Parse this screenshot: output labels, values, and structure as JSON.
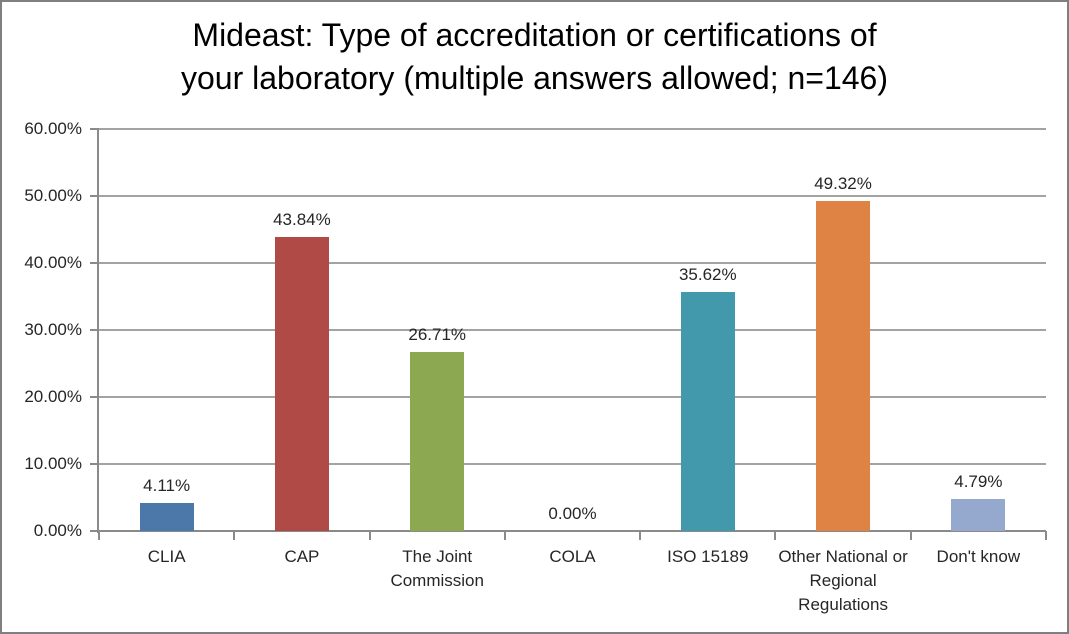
{
  "window": {
    "background": "#ffffff",
    "border_color": "#7f7f7f"
  },
  "chart_data": {
    "type": "bar",
    "title": "Mideast: Type of accreditation or certifications of your laboratory (multiple answers allowed; n=146)",
    "title_lines": [
      "Mideast: Type of accreditation or certifications of",
      "your laboratory (multiple answers allowed; n=146)"
    ],
    "categories": [
      "CLIA",
      "CAP",
      "The Joint Commission",
      "COLA",
      "ISO 15189",
      "Other National or Regional Regulations",
      "Don't know"
    ],
    "values": [
      4.11,
      43.84,
      26.71,
      0.0,
      35.62,
      49.32,
      4.79
    ],
    "value_labels": [
      "4.11%",
      "43.84%",
      "26.71%",
      "0.00%",
      "35.62%",
      "49.32%",
      "4.79%"
    ],
    "bar_colors": [
      "#4B77A9",
      "#B04A47",
      "#8CA951",
      null,
      "#4299AC",
      "#DE8344",
      "#95A9CF"
    ],
    "xlabel": "",
    "ylabel": "",
    "ylim": [
      0,
      60
    ],
    "ytick_values": [
      0,
      10,
      20,
      30,
      40,
      50,
      60
    ],
    "ytick_labels": [
      "0.00%",
      "10.00%",
      "20.00%",
      "30.00%",
      "40.00%",
      "50.00%",
      "60.00%"
    ],
    "grid": true,
    "legend": "none",
    "style": {
      "gridline_color": "#a3a3a3",
      "axis_color": "#8a8a8a",
      "label_color": "#262626",
      "title_color": "#000000"
    }
  }
}
